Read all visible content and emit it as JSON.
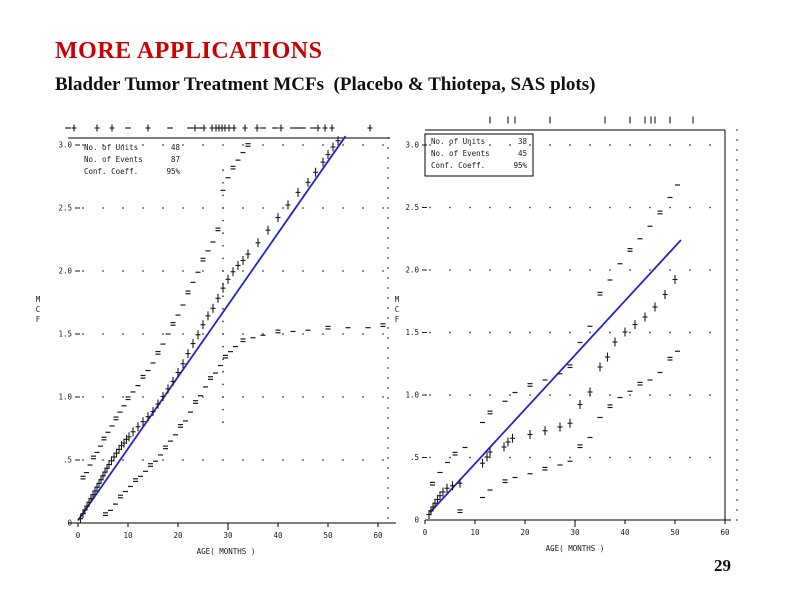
{
  "slide": {
    "title": "MORE APPLICATIONS",
    "subtitle": "Bladder Tumor Treatment MCFs  (Placebo & Thiotepa, SAS plots)",
    "page_number": "29"
  },
  "colors": {
    "title_red": "#cc0000",
    "fit_line_blue": "#2424cc",
    "marks": "#1a1a1a"
  },
  "chart_data": [
    {
      "type": "scatter",
      "group": "Placebo",
      "xlabel": "AGE( MONTHS )",
      "ylabel": "MCF",
      "xlim": [
        0,
        60
      ],
      "ylim": [
        0,
        3.0
      ],
      "xticks": [
        0,
        10,
        20,
        30,
        40,
        50,
        60
      ],
      "yticks": [
        0,
        0.5,
        1.0,
        1.5,
        2.0,
        2.5,
        3.0
      ],
      "ytick_labels": [
        "0",
        ".5",
        "1.0",
        "1.5",
        "2.0",
        "2.5",
        "3.0"
      ],
      "grid": "dotted-horizontal",
      "legend": {
        "boxed": false,
        "position": "top-left",
        "rows": [
          [
            "No. of Units",
            "48"
          ],
          [
            "No. of Events",
            "87"
          ],
          [
            "Conf. Coeff.",
            "95%"
          ]
        ]
      },
      "fit_line": {
        "color": "#2424cc",
        "x": [
          0,
          53.5
        ],
        "y": [
          0.02,
          3.07
        ]
      },
      "series": [
        {
          "name": "mcf_estimate",
          "glyph": "+",
          "points": [
            [
              0.5,
              0.03
            ],
            [
              1,
              0.07
            ],
            [
              1.4,
              0.1
            ],
            [
              1.8,
              0.13
            ],
            [
              2.2,
              0.16
            ],
            [
              2.6,
              0.19
            ],
            [
              3,
              0.22
            ],
            [
              3.4,
              0.25
            ],
            [
              3.8,
              0.28
            ],
            [
              4.2,
              0.31
            ],
            [
              4.6,
              0.34
            ],
            [
              5,
              0.37
            ],
            [
              5.4,
              0.4
            ],
            [
              5.8,
              0.43
            ],
            [
              6.2,
              0.46
            ],
            [
              6.7,
              0.49
            ],
            [
              7.2,
              0.52
            ],
            [
              7.7,
              0.55
            ],
            [
              8.2,
              0.58
            ],
            [
              8.7,
              0.61
            ],
            [
              9.2,
              0.63
            ],
            [
              9.7,
              0.66
            ],
            [
              10.2,
              0.68
            ],
            [
              11,
              0.72
            ],
            [
              12,
              0.76
            ],
            [
              13,
              0.8
            ],
            [
              14,
              0.84
            ],
            [
              15,
              0.88
            ],
            [
              16,
              0.94
            ],
            [
              17,
              1.0
            ],
            [
              18,
              1.06
            ],
            [
              19,
              1.12
            ],
            [
              20,
              1.19
            ],
            [
              21,
              1.26
            ],
            [
              22,
              1.34
            ],
            [
              23,
              1.42
            ],
            [
              24,
              1.49
            ],
            [
              25,
              1.57
            ],
            [
              26,
              1.64
            ],
            [
              27,
              1.7
            ],
            [
              28,
              1.78
            ],
            [
              29,
              1.86
            ],
            [
              30,
              1.93
            ],
            [
              31,
              1.99
            ],
            [
              32,
              2.04
            ],
            [
              33,
              2.08
            ],
            [
              34,
              2.13
            ],
            [
              36,
              2.22
            ],
            [
              38,
              2.32
            ],
            [
              40,
              2.42
            ],
            [
              42,
              2.52
            ],
            [
              44,
              2.62
            ],
            [
              46,
              2.7
            ],
            [
              47.5,
              2.78
            ],
            [
              49,
              2.86
            ],
            [
              50,
              2.92
            ],
            [
              51,
              2.98
            ],
            [
              52,
              3.03
            ]
          ]
        },
        {
          "name": "upper_conf_limit",
          "glyph": "-",
          "points": [
            [
              1,
              0.35
            ],
            [
              1.7,
              0.4
            ],
            [
              2.4,
              0.46
            ],
            [
              3.1,
              0.51
            ],
            [
              3.8,
              0.56
            ],
            [
              4.5,
              0.61
            ],
            [
              5.2,
              0.66
            ],
            [
              6,
              0.72
            ],
            [
              6.8,
              0.77
            ],
            [
              7.6,
              0.82
            ],
            [
              8.4,
              0.88
            ],
            [
              9.2,
              0.93
            ],
            [
              10,
              0.98
            ],
            [
              11,
              1.04
            ],
            [
              12,
              1.09
            ],
            [
              13,
              1.15
            ],
            [
              14,
              1.21
            ],
            [
              15,
              1.27
            ],
            [
              16,
              1.34
            ],
            [
              17,
              1.42
            ],
            [
              18,
              1.5
            ],
            [
              19,
              1.57
            ],
            [
              20,
              1.65
            ],
            [
              21,
              1.73
            ],
            [
              22,
              1.82
            ],
            [
              23,
              1.91
            ],
            [
              24,
              1.99
            ],
            [
              25,
              2.08
            ],
            [
              26,
              2.16
            ],
            [
              27,
              2.23
            ],
            [
              28,
              2.32
            ],
            [
              29,
              2.64
            ],
            [
              30,
              2.74
            ],
            [
              31,
              2.81
            ],
            [
              32,
              2.88
            ],
            [
              33,
              2.94
            ],
            [
              34,
              2.99
            ]
          ]
        },
        {
          "name": "lower_conf_limit",
          "glyph": "-",
          "points": [
            [
              5.5,
              0.06
            ],
            [
              6.5,
              0.1
            ],
            [
              7.5,
              0.15
            ],
            [
              8.5,
              0.2
            ],
            [
              9.5,
              0.25
            ],
            [
              10.5,
              0.29
            ],
            [
              11.5,
              0.33
            ],
            [
              12.5,
              0.37
            ],
            [
              13.5,
              0.41
            ],
            [
              14.5,
              0.45
            ],
            [
              15.5,
              0.49
            ],
            [
              16.5,
              0.54
            ],
            [
              17.5,
              0.59
            ],
            [
              18.5,
              0.65
            ],
            [
              19.5,
              0.7
            ],
            [
              20.5,
              0.76
            ],
            [
              21.5,
              0.81
            ],
            [
              22.5,
              0.88
            ],
            [
              23.5,
              0.95
            ],
            [
              24.5,
              1.01
            ],
            [
              25.5,
              1.08
            ],
            [
              26.5,
              1.14
            ],
            [
              27.5,
              1.19
            ],
            [
              28.5,
              1.25
            ],
            [
              29.5,
              1.31
            ],
            [
              30.5,
              1.36
            ],
            [
              31.5,
              1.4
            ],
            [
              33,
              1.44
            ],
            [
              35,
              1.47
            ],
            [
              37,
              1.49
            ],
            [
              40,
              1.51
            ],
            [
              43,
              1.52
            ],
            [
              46,
              1.53
            ],
            [
              50,
              1.54
            ],
            [
              54,
              1.55
            ],
            [
              58,
              1.55
            ],
            [
              61,
              1.56
            ]
          ]
        }
      ],
      "jump_column": {
        "age": 29,
        "from": 0.8,
        "to": 2.9
      },
      "censor_marks": [
        {
          "age": -2,
          "glyph": "-"
        },
        {
          "age": -0.8,
          "glyph": "+"
        },
        {
          "age": 3.8,
          "glyph": "+"
        },
        {
          "age": 6.8,
          "glyph": "+"
        },
        {
          "age": 10,
          "glyph": "-"
        },
        {
          "age": 14,
          "glyph": "+"
        },
        {
          "age": 18.4,
          "glyph": "-"
        },
        {
          "age": 22.4,
          "glyph": "-"
        },
        {
          "age": 23.4,
          "glyph": "+"
        },
        {
          "age": 24.4,
          "glyph": "-"
        },
        {
          "age": 25.2,
          "glyph": "+"
        },
        {
          "age": 26.8,
          "glyph": "+"
        },
        {
          "age": 27.6,
          "glyph": "+"
        },
        {
          "age": 28.2,
          "glyph": "+"
        },
        {
          "age": 28.8,
          "glyph": "+"
        },
        {
          "age": 29.4,
          "glyph": "+"
        },
        {
          "age": 30.2,
          "glyph": "+"
        },
        {
          "age": 31.2,
          "glyph": "+"
        },
        {
          "age": 33.4,
          "glyph": "+"
        },
        {
          "age": 35.8,
          "glyph": "+"
        },
        {
          "age": 37,
          "glyph": "-"
        },
        {
          "age": 39.4,
          "glyph": "-"
        },
        {
          "age": 40.6,
          "glyph": "+"
        },
        {
          "age": 43,
          "glyph": "-"
        },
        {
          "age": 44,
          "glyph": "-"
        },
        {
          "age": 45,
          "glyph": "-"
        },
        {
          "age": 47,
          "glyph": "-"
        },
        {
          "age": 48,
          "glyph": "+"
        },
        {
          "age": 49.4,
          "glyph": "+"
        },
        {
          "age": 50.8,
          "glyph": "+"
        },
        {
          "age": 58.4,
          "glyph": "+"
        }
      ]
    },
    {
      "type": "scatter",
      "group": "Thiotepa",
      "xlabel": "AGE( MONTHS )",
      "ylabel": "MCF",
      "xlim": [
        0,
        60
      ],
      "ylim": [
        0,
        3.0
      ],
      "xticks": [
        0,
        10,
        20,
        30,
        40,
        50,
        60
      ],
      "yticks": [
        0,
        0.5,
        1.0,
        1.5,
        2.0,
        2.5,
        3.0
      ],
      "ytick_labels": [
        "0",
        ".5",
        "1.0",
        "1.5",
        "2.0",
        "2.5",
        "3.0"
      ],
      "grid": "dotted-horizontal",
      "legend": {
        "boxed": true,
        "position": "top-left",
        "rows": [
          [
            "No. of Units",
            "38"
          ],
          [
            "No. of Events",
            "45"
          ],
          [
            "Conf. Coeff.",
            "95%"
          ]
        ]
      },
      "fit_line": {
        "color": "#2424cc",
        "x": [
          1,
          51.2
        ],
        "y": [
          0.06,
          2.24
        ]
      },
      "series": [
        {
          "name": "mcf_estimate",
          "glyph": "+",
          "points": [
            [
              0.8,
              0.04
            ],
            [
              1.2,
              0.07
            ],
            [
              1.6,
              0.1
            ],
            [
              2,
              0.13
            ],
            [
              2.5,
              0.16
            ],
            [
              3,
              0.19
            ],
            [
              3.6,
              0.22
            ],
            [
              4.4,
              0.25
            ],
            [
              5.5,
              0.27
            ],
            [
              7,
              0.29
            ],
            [
              11.5,
              0.45
            ],
            [
              12.4,
              0.5
            ],
            [
              13,
              0.54
            ],
            [
              15.8,
              0.58
            ],
            [
              16.6,
              0.62
            ],
            [
              17.5,
              0.65
            ],
            [
              21,
              0.68
            ],
            [
              24,
              0.71
            ],
            [
              27,
              0.74
            ],
            [
              29,
              0.77
            ],
            [
              31,
              0.92
            ],
            [
              33,
              1.02
            ],
            [
              35,
              1.22
            ],
            [
              36.5,
              1.3
            ],
            [
              38,
              1.42
            ],
            [
              40,
              1.5
            ],
            [
              42,
              1.56
            ],
            [
              44,
              1.62
            ],
            [
              46,
              1.7
            ],
            [
              48,
              1.8
            ],
            [
              50,
              1.92
            ]
          ]
        },
        {
          "name": "upper_conf_limit",
          "glyph": "-",
          "points": [
            [
              1.5,
              0.28
            ],
            [
              3,
              0.38
            ],
            [
              4.5,
              0.46
            ],
            [
              6,
              0.52
            ],
            [
              8,
              0.58
            ],
            [
              11.5,
              0.78
            ],
            [
              13,
              0.85
            ],
            [
              16,
              0.95
            ],
            [
              18,
              1.02
            ],
            [
              21,
              1.07
            ],
            [
              24,
              1.12
            ],
            [
              27,
              1.17
            ],
            [
              29,
              1.22
            ],
            [
              31,
              1.42
            ],
            [
              33,
              1.55
            ],
            [
              35,
              1.8
            ],
            [
              37,
              1.92
            ],
            [
              39,
              2.05
            ],
            [
              41,
              2.15
            ],
            [
              43,
              2.25
            ],
            [
              45,
              2.35
            ],
            [
              47,
              2.45
            ],
            [
              49,
              2.58
            ],
            [
              50.5,
              2.68
            ]
          ]
        },
        {
          "name": "lower_conf_limit",
          "glyph": "-",
          "points": [
            [
              7,
              0.06
            ],
            [
              11.5,
              0.18
            ],
            [
              13,
              0.24
            ],
            [
              16,
              0.3
            ],
            [
              18,
              0.34
            ],
            [
              21,
              0.37
            ],
            [
              24,
              0.4
            ],
            [
              27,
              0.44
            ],
            [
              29,
              0.47
            ],
            [
              31,
              0.58
            ],
            [
              33,
              0.66
            ],
            [
              35,
              0.82
            ],
            [
              37,
              0.9
            ],
            [
              39,
              0.98
            ],
            [
              41,
              1.03
            ],
            [
              43,
              1.08
            ],
            [
              45,
              1.12
            ],
            [
              47,
              1.18
            ],
            [
              49,
              1.28
            ],
            [
              50.5,
              1.35
            ]
          ]
        }
      ],
      "jump_column": null,
      "censor_marks": [
        {
          "age": 13,
          "glyph": "|"
        },
        {
          "age": 16.6,
          "glyph": "|"
        },
        {
          "age": 18,
          "glyph": "|"
        },
        {
          "age": 25,
          "glyph": "|"
        },
        {
          "age": 36,
          "glyph": "|"
        },
        {
          "age": 41,
          "glyph": "|"
        },
        {
          "age": 44,
          "glyph": "|"
        },
        {
          "age": 45.2,
          "glyph": "|"
        },
        {
          "age": 46,
          "glyph": "|"
        },
        {
          "age": 49,
          "glyph": "|"
        },
        {
          "age": 53.6,
          "glyph": "|"
        }
      ]
    }
  ]
}
